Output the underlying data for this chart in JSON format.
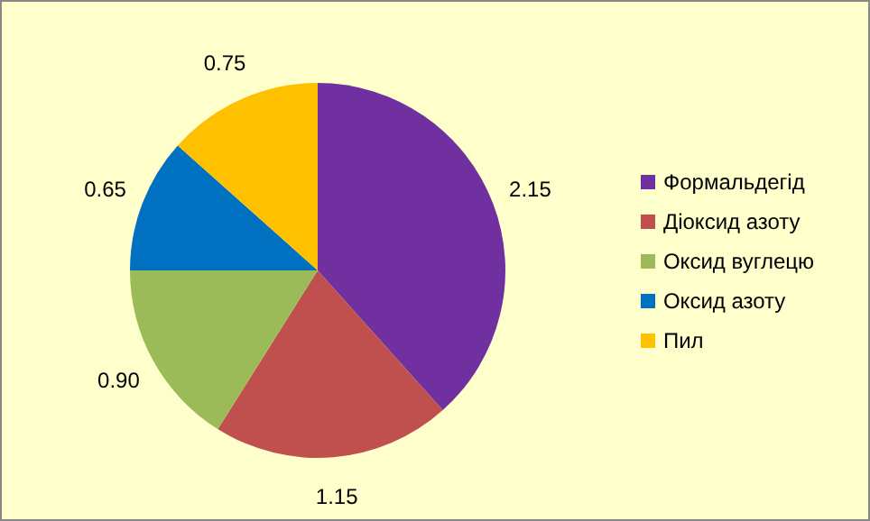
{
  "chart_data": {
    "type": "pie",
    "categories": [
      "Формальдегід",
      "Діоксид азоту",
      "Оксид вуглецю",
      "Оксид азоту",
      "Пил"
    ],
    "values": [
      2.15,
      1.15,
      0.9,
      0.65,
      0.75
    ],
    "value_labels": [
      "2.15",
      "1.15",
      "0.90",
      "0.65",
      "0.75"
    ],
    "colors": [
      "#7030a0",
      "#c0504d",
      "#9bbb59",
      "#0070c0",
      "#ffc000"
    ],
    "legend": "right"
  }
}
